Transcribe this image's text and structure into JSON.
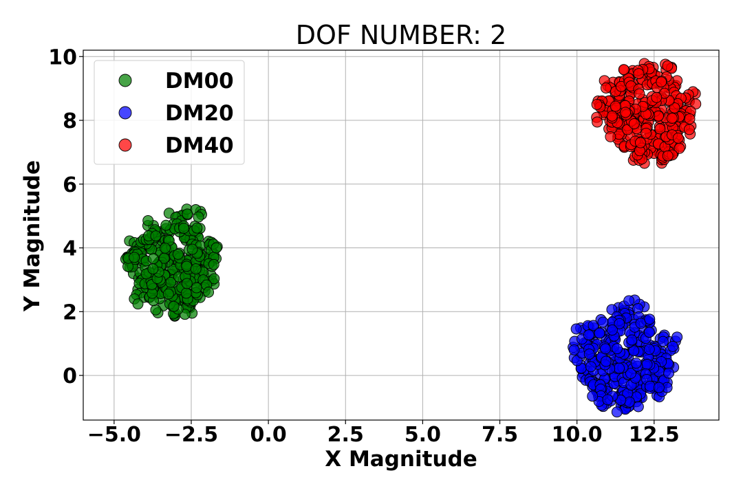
{
  "chart_data": {
    "type": "scatter",
    "title": "DOF NUMBER: 2",
    "xlabel": "X Magnitude",
    "ylabel": "Y Magnitude",
    "xlim": [
      -6.0,
      14.6
    ],
    "ylim": [
      -1.4,
      10.2
    ],
    "xticks": [
      -5.0,
      -2.5,
      0.0,
      2.5,
      5.0,
      7.5,
      10.0,
      12.5
    ],
    "xtick_labels": [
      "−5.0",
      "−2.5",
      "0.0",
      "2.5",
      "5.0",
      "7.5",
      "10.0",
      "12.5"
    ],
    "yticks": [
      0,
      2,
      4,
      6,
      8,
      10
    ],
    "ytick_labels": [
      "0",
      "2",
      "4",
      "6",
      "8",
      "10"
    ],
    "grid": true,
    "legend_position": "upper-left",
    "series": [
      {
        "name": "DM00",
        "color": "#008000",
        "points": [
          [
            -3.2,
            3.6
          ],
          [
            -3.8,
            4.2
          ],
          [
            -2.6,
            4.4
          ],
          [
            -2.2,
            3.8
          ],
          [
            -4.2,
            3.4
          ],
          [
            -3.5,
            2.8
          ],
          [
            -2.8,
            2.6
          ],
          [
            -2.4,
            3.0
          ],
          [
            -3.9,
            2.9
          ],
          [
            -4.3,
            3.9
          ],
          [
            -3.1,
            4.8
          ],
          [
            -2.5,
            4.9
          ],
          [
            -2.0,
            4.0
          ],
          [
            -2.1,
            3.2
          ],
          [
            -2.7,
            2.2
          ],
          [
            -3.3,
            2.3
          ],
          [
            -4.0,
            2.6
          ],
          [
            -4.4,
            3.6
          ],
          [
            -3.6,
            4.6
          ],
          [
            -2.9,
            3.3
          ],
          [
            -3.4,
            3.9
          ],
          [
            -2.3,
            2.5
          ],
          [
            -3.0,
            2.9
          ],
          [
            -3.7,
            3.3
          ],
          [
            -2.6,
            3.7
          ]
        ]
      },
      {
        "name": "DM20",
        "color": "#0000ff",
        "points": [
          [
            11.5,
            0.4
          ],
          [
            10.9,
            1.0
          ],
          [
            12.1,
            1.1
          ],
          [
            12.6,
            0.6
          ],
          [
            10.4,
            0.3
          ],
          [
            11.0,
            -0.3
          ],
          [
            11.8,
            -0.6
          ],
          [
            12.4,
            -0.1
          ],
          [
            10.6,
            -0.2
          ],
          [
            10.2,
            0.8
          ],
          [
            11.4,
            1.8
          ],
          [
            11.9,
            2.0
          ],
          [
            12.9,
            0.9
          ],
          [
            12.8,
            0.1
          ],
          [
            11.3,
            -0.8
          ],
          [
            11.7,
            -0.7
          ],
          [
            10.8,
            -0.6
          ],
          [
            10.3,
            1.2
          ],
          [
            11.1,
            1.6
          ],
          [
            11.6,
            0.0
          ],
          [
            12.2,
            0.5
          ],
          [
            12.6,
            -0.3
          ],
          [
            11.2,
            0.6
          ],
          [
            10.7,
            0.5
          ],
          [
            12.0,
            1.4
          ]
        ]
      },
      {
        "name": "DM40",
        "color": "#ff0000",
        "points": [
          [
            12.3,
            8.3
          ],
          [
            11.6,
            8.8
          ],
          [
            12.9,
            8.9
          ],
          [
            13.3,
            8.3
          ],
          [
            11.2,
            8.1
          ],
          [
            11.7,
            7.5
          ],
          [
            12.6,
            7.2
          ],
          [
            13.1,
            7.6
          ],
          [
            11.4,
            7.7
          ],
          [
            11.1,
            8.9
          ],
          [
            12.1,
            9.5
          ],
          [
            12.7,
            9.4
          ],
          [
            13.5,
            8.6
          ],
          [
            13.4,
            7.9
          ],
          [
            12.2,
            7.0
          ],
          [
            12.8,
            7.0
          ],
          [
            11.9,
            7.1
          ],
          [
            10.9,
            8.3
          ],
          [
            11.8,
            9.3
          ],
          [
            12.4,
            7.9
          ],
          [
            12.9,
            8.4
          ],
          [
            13.0,
            7.2
          ],
          [
            12.0,
            8.5
          ],
          [
            11.5,
            8.2
          ],
          [
            12.5,
            8.9
          ]
        ]
      }
    ]
  }
}
